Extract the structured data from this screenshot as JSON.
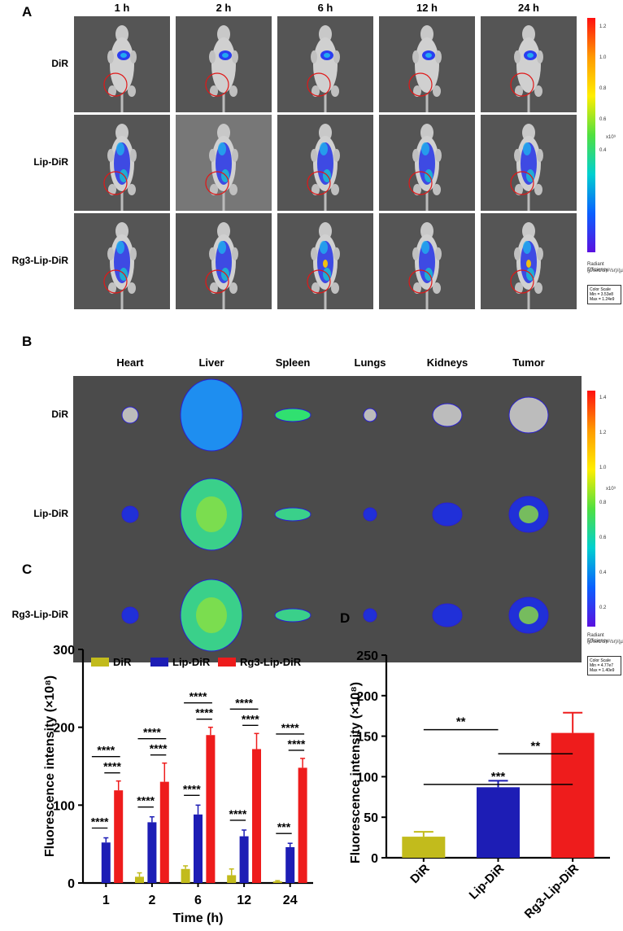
{
  "panel_a": {
    "letter": "A",
    "timepoints": [
      "1 h",
      "2 h",
      "6 h",
      "12 h",
      "24 h"
    ],
    "rows": [
      "DiR",
      "Lip-DiR",
      "Rg3-Lip-DiR"
    ],
    "colorbar_ticks": [
      "1.2",
      "1.0",
      "0.8",
      "0.6",
      "0.4"
    ],
    "exponent": "x10⁹",
    "radiant_title": "Radiant Efficiency",
    "radiant_units": "(p/sec/cm²/sr)/(µW/cm²)",
    "scale_title": "Color Scale",
    "scale_min": "Min = 3.53e8",
    "scale_max": "Max = 1.24e9"
  },
  "panel_b": {
    "letter": "B",
    "organs": [
      "Heart",
      "Liver",
      "Spleen",
      "Lungs",
      "Kidneys",
      "Tumor"
    ],
    "rows": [
      "DiR",
      "Lip-DiR",
      "Rg3-Lip-DiR"
    ],
    "colorbar_ticks": [
      "1.4",
      "1.2",
      "1.0",
      "0.8",
      "0.6",
      "0.4",
      "0.2"
    ],
    "exponent": "x10⁹",
    "radiant_title": "Radiant Efficiency",
    "radiant_units": "(p/sec/cm²/sr)/(µW/cm²)",
    "scale_title": "Color Scale",
    "scale_min": "Min = 4.77e7",
    "scale_max": "Max = 1.40e9"
  },
  "chart_data": [
    {
      "panel": "C",
      "type": "bar",
      "xlabel": "Time (h)",
      "ylabel": "Fluorescence intensity (×10⁸)",
      "categories": [
        "1",
        "2",
        "6",
        "12",
        "24"
      ],
      "ylim": [
        0,
        300
      ],
      "yticks": [
        0,
        100,
        200,
        300
      ],
      "legend_position": "top",
      "series": [
        {
          "name": "DiR",
          "color": "#c2bb1c",
          "values": [
            0,
            8,
            18,
            10,
            2
          ],
          "errors": [
            0,
            5,
            4,
            8,
            1
          ]
        },
        {
          "name": "Lip-DiR",
          "color": "#1d1db5",
          "values": [
            52,
            78,
            88,
            60,
            46
          ],
          "errors": [
            6,
            7,
            12,
            8,
            5
          ]
        },
        {
          "name": "Rg3-Lip-DiR",
          "color": "#ee1c1c",
          "values": [
            119,
            130,
            190,
            172,
            148
          ],
          "errors": [
            12,
            24,
            10,
            20,
            12
          ]
        }
      ],
      "significance": [
        {
          "group": 0,
          "labels": [
            "****",
            "****",
            "****"
          ]
        },
        {
          "group": 1,
          "labels": [
            "****",
            "****",
            "****"
          ]
        },
        {
          "group": 2,
          "labels": [
            "****",
            "****",
            "****"
          ]
        },
        {
          "group": 3,
          "labels": [
            "****",
            "****",
            "****"
          ]
        },
        {
          "group": 4,
          "labels": [
            "***",
            "****",
            "****"
          ]
        }
      ]
    },
    {
      "panel": "D",
      "type": "bar",
      "xlabel": "",
      "ylabel": "Fluorescence intensity (×10⁸)",
      "categories": [
        "DiR",
        "Lip-DiR",
        "Rg3-Lip-DiR"
      ],
      "ylim": [
        0,
        250
      ],
      "yticks": [
        0,
        50,
        100,
        150,
        200,
        250
      ],
      "values": [
        26,
        87,
        154
      ],
      "errors": [
        6,
        8,
        25
      ],
      "colors": [
        "#c2bb1c",
        "#1d1db5",
        "#ee1c1c"
      ],
      "significance": [
        {
          "from": 0,
          "to": 1,
          "label": "**"
        },
        {
          "from": 0,
          "to": 2,
          "label": "***"
        },
        {
          "from": 1,
          "to": 2,
          "label": "**"
        }
      ]
    }
  ],
  "labels": {
    "c": "C",
    "d": "D"
  }
}
